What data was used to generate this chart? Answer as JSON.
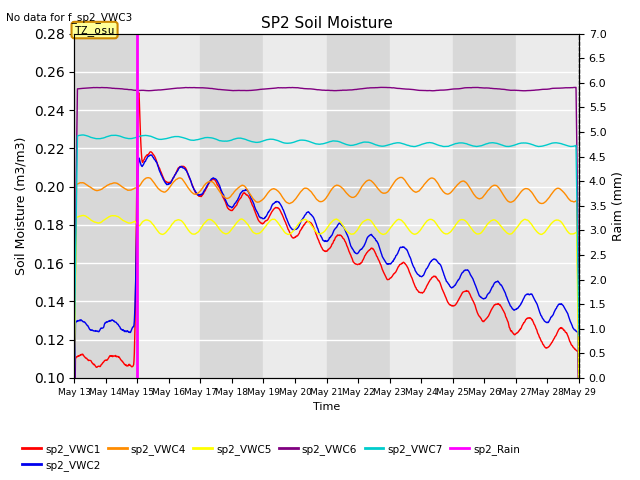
{
  "title": "SP2 Soil Moisture",
  "no_data_text": "No data for f_sp2_VWC3",
  "tz_label": "TZ_osu",
  "ylabel_left": "Soil Moisture (m3/m3)",
  "ylabel_right": "Raim (mm)",
  "xlabel": "Time",
  "ylim_left": [
    0.1,
    0.28
  ],
  "ylim_right": [
    0.0,
    7.0
  ],
  "colors": {
    "sp2_VWC1": "#ff0000",
    "sp2_VWC2": "#0000ee",
    "sp2_VWC4": "#ff8c00",
    "sp2_VWC5": "#ffff00",
    "sp2_VWC6": "#800080",
    "sp2_VWC7": "#00cccc",
    "sp2_Rain": "#ff00ff"
  },
  "bg_light": "#ebebeb",
  "bg_dark": "#d8d8d8",
  "grid_color": "#ffffff",
  "rain_day": 2.0,
  "n_days": 16,
  "xtick_start_day": 13
}
